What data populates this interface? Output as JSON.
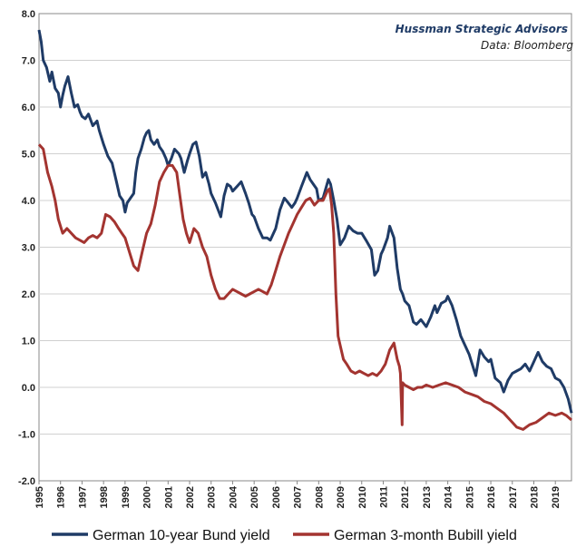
{
  "chart_data": {
    "type": "line",
    "title": "",
    "xlabel": "",
    "ylabel": "",
    "xlim": [
      1995,
      2019.75
    ],
    "ylim": [
      -2.0,
      8.0
    ],
    "y_ticks": [
      "8.0",
      "7.0",
      "6.0",
      "5.0",
      "4.0",
      "3.0",
      "2.0",
      "1.0",
      "0.0",
      "-1.0",
      "-2.0"
    ],
    "x_ticks": [
      "1995",
      "1996",
      "1997",
      "1998",
      "1999",
      "2000",
      "2001",
      "2002",
      "2003",
      "2004",
      "2005",
      "2006",
      "2007",
      "2008",
      "2009",
      "2010",
      "2011",
      "2012",
      "2013",
      "2014",
      "2015",
      "2016",
      "2017",
      "2018",
      "2019"
    ],
    "grid": true,
    "legend_position": "bottom",
    "annotations": [
      "Hussman Strategic Advisors",
      "Data: Bloomberg"
    ],
    "colors": {
      "bund": "#1f3b66",
      "bubill": "#a33430",
      "source_text": "#1f3b66",
      "grid": "#d0d0d0",
      "axis": "#888888"
    },
    "series": [
      {
        "name": "German 10-year Bund yield",
        "x": [
          1995.0,
          1995.1,
          1995.2,
          1995.35,
          1995.5,
          1995.6,
          1995.75,
          1995.9,
          1996.0,
          1996.1,
          1996.2,
          1996.35,
          1996.5,
          1996.65,
          1996.8,
          1996.9,
          1997.0,
          1997.15,
          1997.3,
          1997.5,
          1997.7,
          1997.8,
          1998.0,
          1998.2,
          1998.4,
          1998.6,
          1998.75,
          1998.9,
          1999.0,
          1999.1,
          1999.25,
          1999.4,
          1999.5,
          1999.6,
          1999.75,
          1999.9,
          2000.0,
          2000.1,
          2000.2,
          2000.35,
          2000.5,
          2000.6,
          2000.75,
          2000.9,
          2001.0,
          2001.15,
          2001.3,
          2001.5,
          2001.6,
          2001.75,
          2001.9,
          2002.0,
          2002.15,
          2002.3,
          2002.45,
          2002.6,
          2002.75,
          2002.9,
          2003.0,
          2003.2,
          2003.45,
          2003.6,
          2003.75,
          2003.9,
          2004.0,
          2004.2,
          2004.4,
          2004.6,
          2004.75,
          2004.9,
          2005.0,
          2005.2,
          2005.4,
          2005.6,
          2005.75,
          2005.9,
          2006.0,
          2006.2,
          2006.4,
          2006.5,
          2006.75,
          2006.9,
          2007.0,
          2007.2,
          2007.45,
          2007.6,
          2007.75,
          2007.9,
          2008.0,
          2008.2,
          2008.45,
          2008.55,
          2008.7,
          2008.85,
          2009.0,
          2009.2,
          2009.4,
          2009.6,
          2009.8,
          2010.0,
          2010.2,
          2010.45,
          2010.6,
          2010.75,
          2010.9,
          2011.0,
          2011.2,
          2011.3,
          2011.5,
          2011.65,
          2011.8,
          2011.9,
          2012.0,
          2012.2,
          2012.4,
          2012.55,
          2012.75,
          2013.0,
          2013.2,
          2013.4,
          2013.5,
          2013.7,
          2013.9,
          2014.0,
          2014.2,
          2014.4,
          2014.6,
          2014.8,
          2015.0,
          2015.2,
          2015.3,
          2015.5,
          2015.7,
          2015.9,
          2016.0,
          2016.2,
          2016.45,
          2016.6,
          2016.8,
          2017.0,
          2017.2,
          2017.4,
          2017.6,
          2017.8,
          2018.0,
          2018.2,
          2018.4,
          2018.6,
          2018.8,
          2019.0,
          2019.2,
          2019.4,
          2019.6,
          2019.75
        ],
        "values": [
          7.65,
          7.4,
          7.0,
          6.85,
          6.55,
          6.75,
          6.4,
          6.3,
          6.0,
          6.25,
          6.45,
          6.65,
          6.3,
          6.0,
          6.05,
          5.9,
          5.8,
          5.75,
          5.85,
          5.6,
          5.7,
          5.5,
          5.2,
          4.95,
          4.8,
          4.4,
          4.1,
          4.0,
          3.75,
          3.95,
          4.05,
          4.15,
          4.6,
          4.9,
          5.1,
          5.35,
          5.45,
          5.5,
          5.3,
          5.2,
          5.3,
          5.15,
          5.05,
          4.9,
          4.75,
          4.9,
          5.1,
          5.0,
          4.9,
          4.6,
          4.85,
          5.0,
          5.2,
          5.25,
          4.95,
          4.5,
          4.6,
          4.35,
          4.15,
          3.95,
          3.65,
          4.1,
          4.35,
          4.3,
          4.2,
          4.3,
          4.4,
          4.15,
          3.95,
          3.7,
          3.65,
          3.4,
          3.2,
          3.2,
          3.15,
          3.3,
          3.4,
          3.8,
          4.05,
          4.0,
          3.85,
          3.95,
          4.05,
          4.3,
          4.6,
          4.45,
          4.35,
          4.25,
          4.0,
          4.05,
          4.45,
          4.35,
          4.0,
          3.6,
          3.05,
          3.2,
          3.45,
          3.35,
          3.3,
          3.3,
          3.15,
          2.95,
          2.4,
          2.5,
          2.85,
          2.95,
          3.2,
          3.45,
          3.2,
          2.55,
          2.1,
          2.0,
          1.85,
          1.75,
          1.4,
          1.35,
          1.45,
          1.3,
          1.5,
          1.75,
          1.6,
          1.8,
          1.85,
          1.95,
          1.75,
          1.45,
          1.1,
          0.9,
          0.7,
          0.4,
          0.25,
          0.8,
          0.65,
          0.55,
          0.6,
          0.2,
          0.1,
          -0.1,
          0.15,
          0.3,
          0.35,
          0.4,
          0.5,
          0.35,
          0.55,
          0.75,
          0.55,
          0.45,
          0.4,
          0.2,
          0.15,
          0.0,
          -0.25,
          -0.55
        ]
      },
      {
        "name": "German 3-month Bubill yield",
        "x": [
          1995.0,
          1995.2,
          1995.4,
          1995.6,
          1995.75,
          1995.9,
          1996.1,
          1996.3,
          1996.5,
          1996.7,
          1996.9,
          1997.1,
          1997.3,
          1997.5,
          1997.7,
          1997.9,
          1998.1,
          1998.3,
          1998.5,
          1998.7,
          1998.85,
          1999.0,
          1999.2,
          1999.4,
          1999.6,
          1999.8,
          2000.0,
          2000.2,
          2000.4,
          2000.6,
          2000.8,
          2001.0,
          2001.2,
          2001.4,
          2001.55,
          2001.7,
          2001.85,
          2002.0,
          2002.2,
          2002.4,
          2002.6,
          2002.8,
          2003.0,
          2003.2,
          2003.4,
          2003.6,
          2003.8,
          2004.0,
          2004.2,
          2004.4,
          2004.6,
          2004.8,
          2005.0,
          2005.2,
          2005.4,
          2005.6,
          2005.8,
          2006.0,
          2006.2,
          2006.4,
          2006.6,
          2006.8,
          2007.0,
          2007.2,
          2007.4,
          2007.6,
          2007.8,
          2008.0,
          2008.2,
          2008.4,
          2008.5,
          2008.6,
          2008.7,
          2008.8,
          2008.9,
          2009.0,
          2009.15,
          2009.3,
          2009.5,
          2009.7,
          2009.9,
          2010.1,
          2010.3,
          2010.5,
          2010.7,
          2010.9,
          2011.1,
          2011.3,
          2011.5,
          2011.65,
          2011.75,
          2011.8,
          2011.85,
          2011.88,
          2011.9,
          2012.0,
          2012.2,
          2012.4,
          2012.6,
          2012.8,
          2013.0,
          2013.3,
          2013.6,
          2013.9,
          2014.2,
          2014.5,
          2014.8,
          2015.1,
          2015.4,
          2015.7,
          2016.0,
          2016.3,
          2016.6,
          2016.9,
          2017.2,
          2017.5,
          2017.8,
          2018.1,
          2018.4,
          2018.7,
          2019.0,
          2019.3,
          2019.5,
          2019.75
        ],
        "values": [
          5.2,
          5.1,
          4.6,
          4.3,
          4.0,
          3.6,
          3.3,
          3.4,
          3.3,
          3.2,
          3.15,
          3.1,
          3.2,
          3.25,
          3.2,
          3.3,
          3.7,
          3.65,
          3.55,
          3.4,
          3.3,
          3.2,
          2.9,
          2.6,
          2.5,
          2.9,
          3.3,
          3.5,
          3.9,
          4.4,
          4.6,
          4.75,
          4.75,
          4.6,
          4.1,
          3.6,
          3.3,
          3.1,
          3.4,
          3.3,
          3.0,
          2.8,
          2.4,
          2.1,
          1.9,
          1.9,
          2.0,
          2.1,
          2.05,
          2.0,
          1.95,
          2.0,
          2.05,
          2.1,
          2.05,
          2.0,
          2.2,
          2.5,
          2.8,
          3.05,
          3.3,
          3.5,
          3.7,
          3.85,
          4.0,
          4.05,
          3.9,
          4.0,
          4.0,
          4.2,
          4.25,
          3.9,
          3.3,
          2.0,
          1.1,
          0.9,
          0.6,
          0.5,
          0.35,
          0.3,
          0.35,
          0.3,
          0.25,
          0.3,
          0.25,
          0.35,
          0.5,
          0.8,
          0.95,
          0.6,
          0.45,
          0.3,
          -0.4,
          -0.8,
          0.1,
          0.05,
          0.0,
          -0.05,
          0.0,
          0.0,
          0.05,
          0.0,
          0.05,
          0.1,
          0.05,
          0.0,
          -0.1,
          -0.15,
          -0.2,
          -0.3,
          -0.35,
          -0.45,
          -0.55,
          -0.7,
          -0.85,
          -0.9,
          -0.8,
          -0.75,
          -0.65,
          -0.55,
          -0.6,
          -0.55,
          -0.6,
          -0.7
        ]
      }
    ]
  }
}
